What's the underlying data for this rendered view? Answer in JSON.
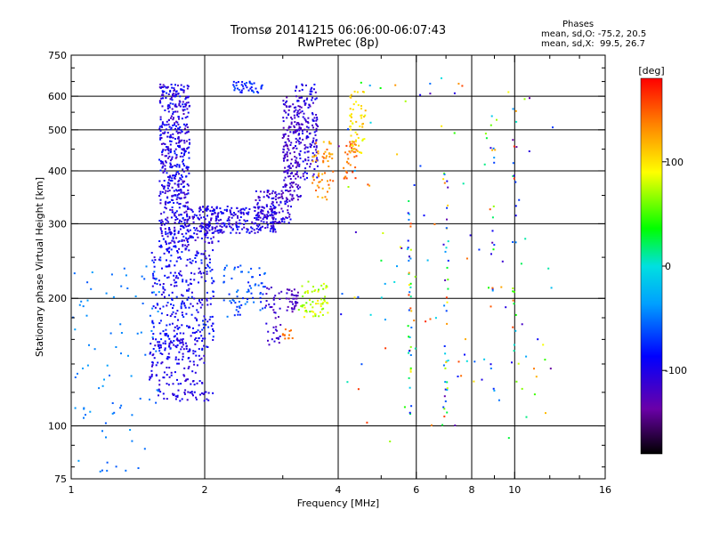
{
  "chart_data": {
    "type": "scatter",
    "title": "Tromsø 20141215 06:06:00-06:07:43",
    "subtitle": "RwPretec (8p)",
    "stats": {
      "header": "Phases",
      "line_o": "mean, sd,O: -75.2, 20.5",
      "line_x": "mean, sd,X:  99.5, 26.7"
    },
    "xlabel": "Frequency [MHz]",
    "ylabel": "Stationary phase Virtual Height [km]",
    "x_scale": "log",
    "y_scale": "log",
    "xlim": [
      1,
      16
    ],
    "ylim": [
      75,
      750
    ],
    "x_ticks": [
      1,
      2,
      4,
      6,
      8,
      10,
      16
    ],
    "y_ticks": [
      75,
      100,
      200,
      300,
      400,
      500,
      600,
      750
    ],
    "x_gridlines": [
      2,
      4,
      6,
      8,
      10
    ],
    "y_gridlines": [
      100,
      200,
      300,
      400,
      500,
      600
    ],
    "x_minor_ticks": [
      3,
      5,
      7,
      9,
      12,
      14
    ],
    "y_minor_ticks": [
      80,
      90,
      120,
      140,
      160,
      180,
      250,
      350,
      450,
      550,
      650,
      700
    ],
    "colorbar": {
      "label": "[deg]",
      "min": -180,
      "max": 180,
      "ticks": [
        100,
        0,
        -100
      ],
      "colormap": "rainbow"
    },
    "grid": true,
    "clusters": [
      {
        "f": [
          1.58,
          1.85
        ],
        "h": [
          260,
          640
        ],
        "n": 560,
        "phase": [
          -125,
          -75
        ]
      },
      {
        "f": [
          1.8,
          2.15
        ],
        "h": [
          270,
          330
        ],
        "n": 100,
        "phase": [
          -120,
          -80
        ]
      },
      {
        "f": [
          2.0,
          2.9
        ],
        "h": [
          285,
          330
        ],
        "n": 220,
        "phase": [
          -120,
          -80
        ]
      },
      {
        "f": [
          2.6,
          3.15
        ],
        "h": [
          300,
          360
        ],
        "n": 120,
        "phase": [
          -130,
          -90
        ]
      },
      {
        "f": [
          3.0,
          3.3
        ],
        "h": [
          340,
          600
        ],
        "n": 180,
        "phase": [
          -130,
          -100
        ]
      },
      {
        "f": [
          3.2,
          3.6
        ],
        "h": [
          380,
          640
        ],
        "n": 160,
        "phase": [
          -125,
          -85
        ]
      },
      {
        "f": [
          3.5,
          3.9
        ],
        "h": [
          340,
          470
        ],
        "n": 55,
        "phase": [
          110,
          150
        ]
      },
      {
        "f": [
          4.1,
          4.4
        ],
        "h": [
          380,
          470
        ],
        "n": 35,
        "phase": [
          130,
          165
        ]
      },
      {
        "f": [
          4.25,
          4.6
        ],
        "h": [
          440,
          620
        ],
        "n": 55,
        "phase": [
          80,
          120
        ]
      },
      {
        "f": [
          1.52,
          2.1
        ],
        "h": [
          150,
          260
        ],
        "n": 300,
        "phase": [
          -110,
          -70
        ]
      },
      {
        "f": [
          1.5,
          2.0
        ],
        "h": [
          125,
          160
        ],
        "n": 130,
        "phase": [
          -115,
          -85
        ]
      },
      {
        "f": [
          1.55,
          2.1
        ],
        "h": [
          114,
          122
        ],
        "n": 40,
        "phase": [
          -115,
          -90
        ]
      },
      {
        "f": [
          2.2,
          2.75
        ],
        "h": [
          180,
          240
        ],
        "n": 70,
        "phase": [
          -80,
          -45
        ]
      },
      {
        "f": [
          2.75,
          3.0
        ],
        "h": [
          155,
          215
        ],
        "n": 40,
        "phase": [
          -130,
          -100
        ]
      },
      {
        "f": [
          3.05,
          3.25
        ],
        "h": [
          185,
          210
        ],
        "n": 35,
        "phase": [
          -135,
          -105
        ]
      },
      {
        "f": [
          3.25,
          3.8
        ],
        "h": [
          180,
          220
        ],
        "n": 60,
        "phase": [
          55,
          100
        ]
      },
      {
        "f": [
          3.0,
          3.2
        ],
        "h": [
          160,
          170
        ],
        "n": 12,
        "phase": [
          135,
          150
        ]
      },
      {
        "f": [
          2.3,
          2.7
        ],
        "h": [
          610,
          650
        ],
        "n": 40,
        "phase": [
          -90,
          -55
        ]
      },
      {
        "f": [
          1.0,
          1.6
        ],
        "h": [
          78,
          240
        ],
        "n": 90,
        "phase": [
          -60,
          -35
        ]
      },
      {
        "f": [
          5.75,
          5.85
        ],
        "h": [
          100,
          340
        ],
        "n": 40,
        "phase": [
          -140,
          170
        ]
      },
      {
        "f": [
          6.9,
          7.1
        ],
        "h": [
          100,
          420
        ],
        "n": 40,
        "phase": [
          -140,
          170
        ]
      },
      {
        "f": [
          8.8,
          9.0
        ],
        "h": [
          120,
          600
        ],
        "n": 22,
        "phase": [
          -140,
          170
        ]
      },
      {
        "f": [
          9.9,
          10.1
        ],
        "h": [
          120,
          600
        ],
        "n": 20,
        "phase": [
          -140,
          170
        ]
      },
      {
        "f": [
          4.0,
          12.5
        ],
        "h": [
          90,
          680
        ],
        "n": 120,
        "phase": [
          -140,
          170
        ]
      }
    ]
  }
}
